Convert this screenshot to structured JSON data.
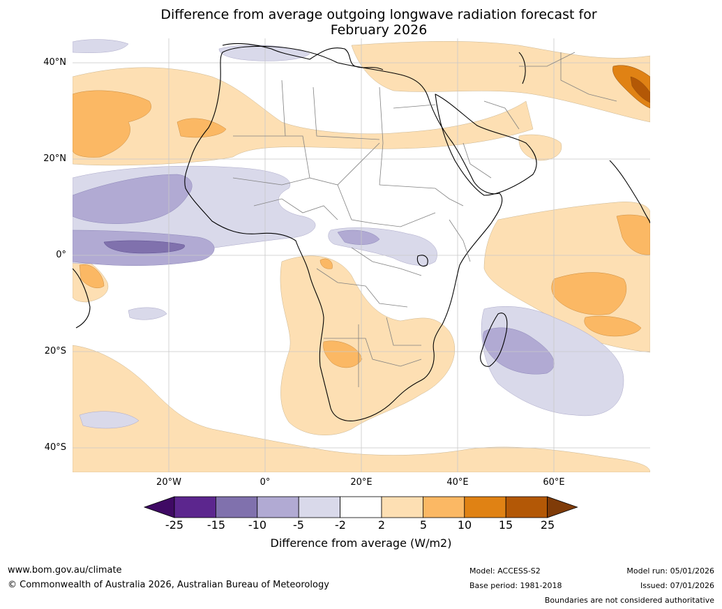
{
  "title": {
    "line1": "Difference from average outgoing longwave radiation forecast for",
    "line2": "February 2026"
  },
  "axes": {
    "lat_labels": [
      "40°N",
      "20°N",
      "0°",
      "20°S",
      "40°S"
    ],
    "lon_labels": [
      "20°W",
      "0°",
      "20°E",
      "40°E",
      "60°E"
    ]
  },
  "colorbar": {
    "ticks": [
      "-25",
      "-15",
      "-10",
      "-5",
      "-2",
      "2",
      "5",
      "10",
      "15",
      "25"
    ],
    "label": "Difference from average (W/m2)",
    "colors": [
      "#3f0a64",
      "#5c268e",
      "#8071ad",
      "#b1aad3",
      "#d9d9ea",
      "#ffffff",
      "#fddfb3",
      "#fbb864",
      "#e08214",
      "#b35806",
      "#7f3b08"
    ]
  },
  "footer": {
    "website": "www.bom.gov.au/climate",
    "copyright": "© Commonwealth of Australia 2026, Australian Bureau of Meteorology",
    "model": "Model: ACCESS-S2",
    "base_period": "Base period: 1981-2018",
    "model_run": "Model run: 05/01/2026",
    "issued": "Issued: 07/01/2026",
    "disclaimer": "Boundaries are not considered authoritative"
  }
}
